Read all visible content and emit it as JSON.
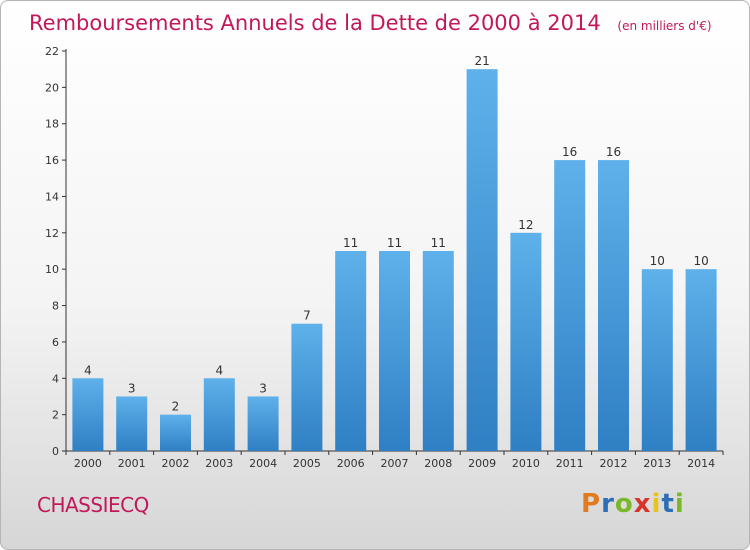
{
  "chart_data": {
    "type": "bar",
    "title": "Remboursements Annuels de la Dette de 2000 à 2014",
    "subtitle": "(en milliers d'€)",
    "xlabel": "",
    "ylabel": "",
    "categories": [
      "2000",
      "2001",
      "2002",
      "2003",
      "2004",
      "2005",
      "2006",
      "2007",
      "2008",
      "2009",
      "2010",
      "2011",
      "2012",
      "2013",
      "2014"
    ],
    "values": [
      4,
      3,
      2,
      4,
      3,
      7,
      11,
      11,
      11,
      21,
      12,
      16,
      16,
      10,
      10
    ],
    "ylim": [
      0,
      22
    ],
    "yticks": [
      0,
      2,
      4,
      6,
      8,
      10,
      12,
      14,
      16,
      18,
      20,
      22
    ],
    "grid": false,
    "legend": "none",
    "bar_color": "#3a94d6"
  },
  "footer": {
    "commune": "CHASSIECQ",
    "brand_letters": [
      "P",
      "r",
      "o",
      "x",
      "i",
      "t",
      "i"
    ],
    "brand_colors": [
      "#e07b1f",
      "#2d6fb5",
      "#7bb829",
      "#d7342a",
      "#e9c21c",
      "#2d6fb5",
      "#7bb829"
    ]
  },
  "colors": {
    "title": "#c2185b",
    "axis": "#333333",
    "label": "#333333"
  }
}
